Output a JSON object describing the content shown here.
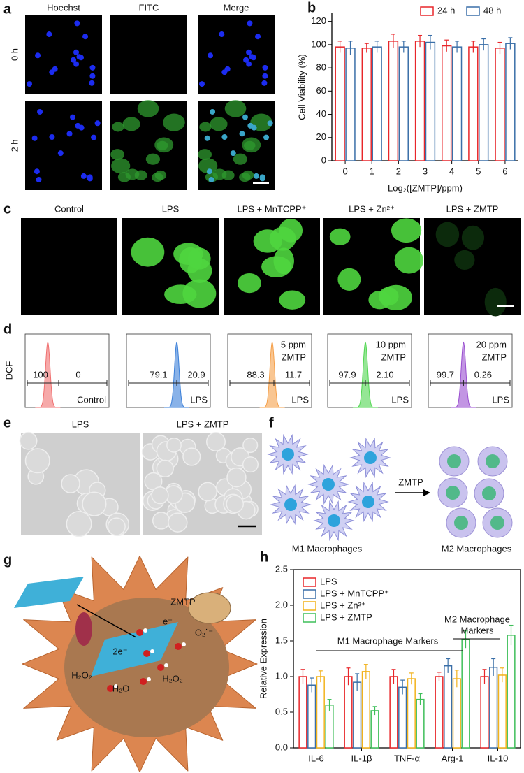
{
  "panel_labels": [
    "a",
    "b",
    "c",
    "d",
    "e",
    "f",
    "g",
    "h"
  ],
  "a": {
    "columns": [
      "Hoechst",
      "FITC",
      "Merge"
    ],
    "rows": [
      "0 h",
      "2 h"
    ]
  },
  "c": {
    "columns": [
      "Control",
      "LPS",
      "LPS + MnTCPP⁺",
      "LPS + Zn²⁺",
      "LPS + ZMTP"
    ]
  },
  "d": {
    "y_label": "DCF",
    "plots": [
      {
        "left": "100",
        "right": "0",
        "label": "Control"
      },
      {
        "left": "79.1",
        "right": "20.9",
        "label": "LPS"
      },
      {
        "left": "88.3",
        "right": "11.7",
        "label": "LPS",
        "dose": "5 ppm",
        "agent": "ZMTP"
      },
      {
        "left": "97.9",
        "right": "2.10",
        "label": "LPS",
        "dose": "10 ppm",
        "agent": "ZMTP"
      },
      {
        "left": "99.7",
        "right": "0.26",
        "label": "LPS",
        "dose": "20 ppm",
        "agent": "ZMTP"
      }
    ]
  },
  "e": {
    "columns": [
      "LPS",
      "LPS + ZMTP"
    ]
  },
  "f": {
    "arrow_label": "ZMTP",
    "left_label": "M1 Macrophages",
    "right_label": "M2 Macrophages"
  },
  "g": {
    "labels": [
      "ZMTP",
      "e⁻",
      "O₂˙⁻",
      "2e⁻",
      "H₂O₂",
      "H₂O",
      "H₂O₂"
    ]
  },
  "chart_data": [
    {
      "type": "bar",
      "y_label": "Cell Viability (%)",
      "x_label": "Log₂([ZMTP]/ppm)",
      "categories": [
        "0",
        "1",
        "2",
        "3",
        "4",
        "5",
        "6"
      ],
      "series": [
        {
          "name": "24 h",
          "color": "#e8262a",
          "values": [
            98,
            97,
            103,
            103,
            99,
            98,
            97
          ],
          "errors": [
            5,
            4,
            6,
            5,
            5,
            5,
            5
          ]
        },
        {
          "name": "48 h",
          "color": "#3a6fa8",
          "values": [
            97,
            98,
            98,
            102,
            98,
            100,
            101
          ],
          "errors": [
            6,
            5,
            5,
            6,
            5,
            5,
            5
          ]
        }
      ],
      "ylim": [
        0,
        127
      ],
      "yticks": [
        0,
        20,
        40,
        60,
        80,
        100,
        120
      ],
      "legend": "top-right"
    },
    {
      "type": "bar",
      "y_label": "Relative Expression",
      "categories": [
        "IL-6",
        "IL-1β",
        "TNF-α",
        "Arg-1",
        "IL-10"
      ],
      "series": [
        {
          "name": "LPS",
          "color": "#e8262a",
          "values": [
            1.0,
            1.0,
            1.0,
            1.0,
            1.0
          ],
          "errors": [
            0.1,
            0.12,
            0.1,
            0.06,
            0.1
          ]
        },
        {
          "name": "LPS + MnTCPP⁺",
          "color": "#3a6fa8",
          "values": [
            0.88,
            0.92,
            0.85,
            1.15,
            1.13
          ],
          "errors": [
            0.1,
            0.12,
            0.1,
            0.1,
            0.12
          ]
        },
        {
          "name": "LPS + Zn²⁺",
          "color": "#f2b21b",
          "values": [
            1.0,
            1.07,
            0.97,
            0.97,
            1.02
          ],
          "errors": [
            0.08,
            0.1,
            0.08,
            0.12,
            0.1
          ]
        },
        {
          "name": "LPS + ZMTP",
          "color": "#3fbf5a",
          "values": [
            0.6,
            0.52,
            0.68,
            1.52,
            1.58
          ],
          "errors": [
            0.08,
            0.06,
            0.08,
            0.12,
            0.14
          ]
        }
      ],
      "ylim": [
        0,
        2.5
      ],
      "yticks": [
        {
          "value": 0,
          "label": "0.0"
        },
        {
          "value": 0.5,
          "label": "0.5"
        },
        {
          "value": 1,
          "label": "1.0"
        },
        {
          "value": 1.5,
          "label": "1.5"
        },
        {
          "value": 2,
          "label": "2.0"
        },
        {
          "value": 2.5,
          "label": "2.5"
        }
      ],
      "annotations": [
        "M1 Macrophage Markers",
        "M2 Macrophage",
        "Markers"
      ],
      "legend": "top-left"
    }
  ]
}
